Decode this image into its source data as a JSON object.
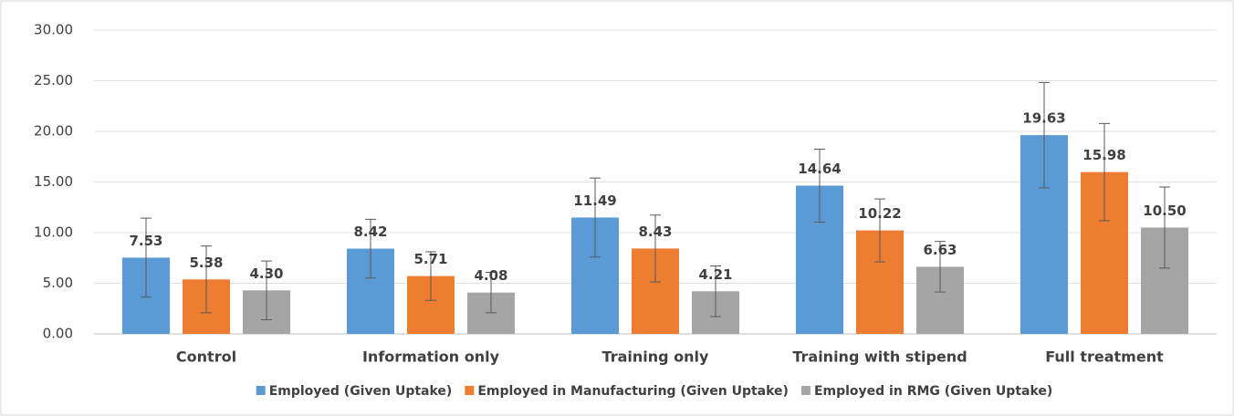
{
  "chart_data": {
    "type": "bar",
    "categories": [
      "Control",
      "Information only",
      "Training only",
      "Training with stipend",
      "Full treatment"
    ],
    "series": [
      {
        "name": "Employed (Given Uptake)",
        "color": "#5b9bd5",
        "values": [
          7.53,
          8.42,
          11.49,
          14.64,
          19.63
        ],
        "value_labels": [
          "7.53",
          "8.42",
          "11.49",
          "14.64",
          "19.63"
        ],
        "errors": [
          3.9,
          2.9,
          3.9,
          3.6,
          5.2
        ]
      },
      {
        "name": "Employed in Manufacturing (Given Uptake)",
        "color": "#ed7d31",
        "values": [
          5.38,
          5.71,
          8.43,
          10.22,
          15.98
        ],
        "value_labels": [
          "5.38",
          "5.71",
          "8.43",
          "10.22",
          "15.98"
        ],
        "errors": [
          3.3,
          2.4,
          3.3,
          3.1,
          4.8
        ]
      },
      {
        "name": "Employed in RMG (Given Uptake)",
        "color": "#a5a5a5",
        "values": [
          4.3,
          4.08,
          4.21,
          6.63,
          10.5
        ],
        "value_labels": [
          "4.30",
          "4.08",
          "4.21",
          "6.63",
          "10.50"
        ],
        "errors": [
          2.9,
          2.0,
          2.5,
          2.5,
          4.0
        ]
      }
    ],
    "ylim": [
      0,
      30
    ],
    "yticks": [
      {
        "value": 0,
        "label": "0.00"
      },
      {
        "value": 5,
        "label": "5.00"
      },
      {
        "value": 10,
        "label": "10.00"
      },
      {
        "value": 15,
        "label": "15.00"
      },
      {
        "value": 20,
        "label": "20.00"
      },
      {
        "value": 25,
        "label": "25.00"
      },
      {
        "value": 30,
        "label": "30.00"
      }
    ],
    "grid": true,
    "legend": "bottom"
  }
}
